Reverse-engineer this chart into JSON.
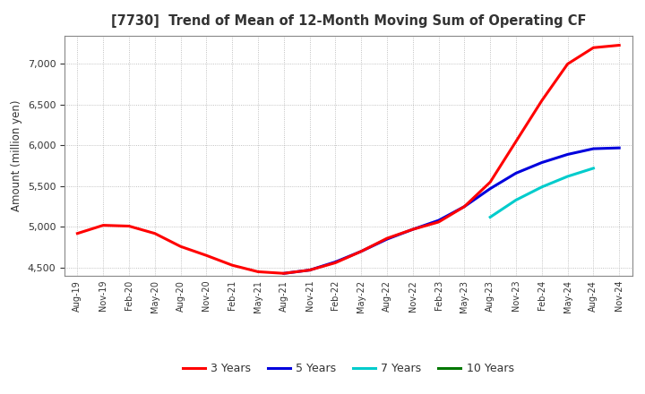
{
  "title": "[7730]  Trend of Mean of 12-Month Moving Sum of Operating CF",
  "ylabel": "Amount (million yen)",
  "background_color": "#ffffff",
  "grid_color": "#b0b0b0",
  "ylim": [
    4400,
    7350
  ],
  "yticks": [
    4500,
    5000,
    5500,
    6000,
    6500,
    7000
  ],
  "legend_labels": [
    "3 Years",
    "5 Years",
    "7 Years",
    "10 Years"
  ],
  "legend_colors": [
    "#ff0000",
    "#0000dd",
    "#00cccc",
    "#007700"
  ],
  "title_color": "#333333",
  "x_labels": [
    "Aug-19",
    "Nov-19",
    "Feb-20",
    "May-20",
    "Aug-20",
    "Nov-20",
    "Feb-21",
    "May-21",
    "Aug-21",
    "Nov-21",
    "Feb-22",
    "May-22",
    "Aug-22",
    "Nov-22",
    "Feb-23",
    "May-23",
    "Aug-23",
    "Nov-23",
    "Feb-24",
    "May-24",
    "Aug-24",
    "Nov-24"
  ],
  "series_3yr": {
    "x_indices": [
      0,
      1,
      2,
      3,
      4,
      5,
      6,
      7,
      8,
      9,
      10,
      11,
      12,
      13,
      14,
      15,
      16,
      17,
      18,
      19,
      20,
      21
    ],
    "y": [
      4920,
      5020,
      5010,
      4920,
      4760,
      4650,
      4530,
      4450,
      4430,
      4470,
      4560,
      4700,
      4860,
      4970,
      5060,
      5250,
      5550,
      6050,
      6550,
      7000,
      7200,
      7230
    ]
  },
  "series_5yr": {
    "x_indices": [
      8,
      9,
      10,
      11,
      12,
      13,
      14,
      15,
      16,
      17,
      18,
      19,
      20,
      21
    ],
    "y": [
      4430,
      4470,
      4570,
      4700,
      4850,
      4970,
      5080,
      5250,
      5470,
      5660,
      5790,
      5890,
      5960,
      5970
    ]
  },
  "series_7yr": {
    "x_indices": [
      16,
      17,
      18,
      19,
      20
    ],
    "y": [
      5120,
      5330,
      5490,
      5620,
      5720
    ]
  },
  "series_10yr": {
    "x_indices": [],
    "y": []
  }
}
